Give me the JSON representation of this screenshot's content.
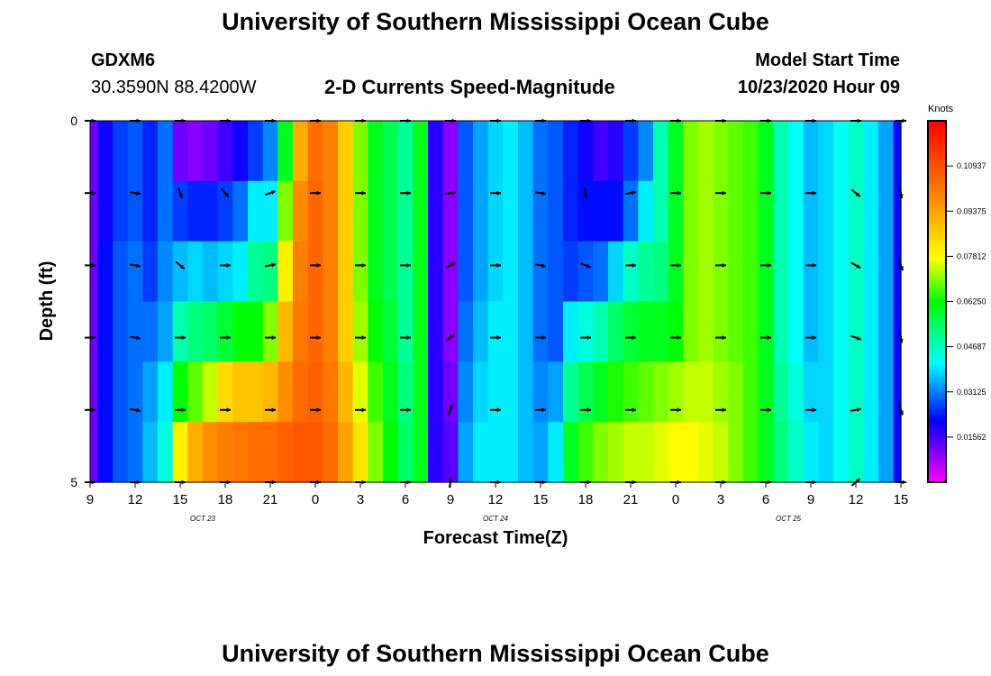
{
  "header": {
    "title": "University of Southern Mississippi Ocean Cube",
    "station_id": "GDXM6",
    "coordinates": "30.3590N 88.4200W",
    "plot_title": "2-D Currents Speed-Magnitude",
    "model_label": "Model Start Time",
    "model_time": "10/23/2020 Hour 09"
  },
  "footer": {
    "title": "University of Southern Mississippi Ocean Cube"
  },
  "colors": {
    "vector": "#000000",
    "scale": [
      "#ff00ff",
      "#0000ff",
      "#00ffff",
      "#00ff00",
      "#ffff00",
      "#ff8000",
      "#ff0000"
    ]
  },
  "chart_data": {
    "type": "heatmap",
    "title": "2-D Currents Speed-Magnitude",
    "xlabel": "Forecast Time(Z)",
    "ylabel": "Depth (ft)",
    "x_hours_from_start": [
      0,
      54
    ],
    "ylim": [
      0,
      5
    ],
    "y_ticks": [
      "0",
      "5"
    ],
    "x_ticks": [
      {
        "h": 0,
        "label": "9"
      },
      {
        "h": 3,
        "label": "12"
      },
      {
        "h": 6,
        "label": "15"
      },
      {
        "h": 9,
        "label": "18"
      },
      {
        "h": 12,
        "label": "21"
      },
      {
        "h": 15,
        "label": "0"
      },
      {
        "h": 18,
        "label": "3"
      },
      {
        "h": 21,
        "label": "6"
      },
      {
        "h": 24,
        "label": "9"
      },
      {
        "h": 27,
        "label": "12"
      },
      {
        "h": 30,
        "label": "15"
      },
      {
        "h": 33,
        "label": "18"
      },
      {
        "h": 36,
        "label": "21"
      },
      {
        "h": 39,
        "label": "0"
      },
      {
        "h": 42,
        "label": "3"
      },
      {
        "h": 45,
        "label": "6"
      },
      {
        "h": 48,
        "label": "9"
      },
      {
        "h": 51,
        "label": "12"
      },
      {
        "h": 54,
        "label": "15"
      }
    ],
    "date_labels": [
      {
        "h": 7.5,
        "label": "OCT 23"
      },
      {
        "h": 27,
        "label": "OCT 24"
      },
      {
        "h": 46.5,
        "label": "OCT 25"
      }
    ],
    "colorbar": {
      "unit": "Knots",
      "range": [
        0,
        0.125
      ],
      "tick_labels": [
        "0.10937",
        "0.09375",
        "0.07812",
        "0.06250",
        "0.04687",
        "0.03125",
        "0.01562"
      ],
      "tick_values": [
        0.10937,
        0.09375,
        0.07812,
        0.0625,
        0.04687,
        0.03125,
        0.01562
      ]
    },
    "depth_levels": [
      0,
      1,
      2,
      3,
      4,
      5
    ],
    "speed_profile_hours": [
      0,
      1,
      2,
      3,
      4,
      5,
      6,
      7,
      8,
      9,
      10,
      11,
      12,
      13,
      14,
      15,
      16,
      17,
      18,
      19,
      20,
      21,
      22,
      23,
      24,
      25,
      26,
      27,
      28,
      29,
      30,
      31,
      32,
      33,
      34,
      35,
      36,
      37,
      38,
      39,
      40,
      41,
      42,
      43,
      44,
      45,
      46,
      47,
      48,
      49,
      50,
      51,
      52,
      53,
      54
    ],
    "speed_knots_by_depth": [
      [
        0.012,
        0.02,
        0.026,
        0.028,
        0.024,
        0.03,
        0.012,
        0.01,
        0.012,
        0.016,
        0.02,
        0.026,
        0.032,
        0.06,
        0.092,
        0.104,
        0.1,
        0.086,
        0.07,
        0.06,
        0.056,
        0.05,
        0.06,
        0.018,
        0.01,
        0.028,
        0.034,
        0.038,
        0.04,
        0.036,
        0.03,
        0.028,
        0.024,
        0.02,
        0.016,
        0.018,
        0.026,
        0.032,
        0.048,
        0.06,
        0.07,
        0.072,
        0.07,
        0.068,
        0.066,
        0.06,
        0.048,
        0.042,
        0.036,
        0.038,
        0.042,
        0.046,
        0.04,
        0.034,
        0.022
      ],
      [
        0.012,
        0.02,
        0.026,
        0.028,
        0.024,
        0.03,
        0.026,
        0.024,
        0.024,
        0.026,
        0.03,
        0.04,
        0.04,
        0.07,
        0.098,
        0.105,
        0.1,
        0.086,
        0.07,
        0.06,
        0.056,
        0.05,
        0.06,
        0.018,
        0.01,
        0.028,
        0.034,
        0.038,
        0.04,
        0.036,
        0.03,
        0.028,
        0.024,
        0.022,
        0.022,
        0.022,
        0.03,
        0.04,
        0.048,
        0.06,
        0.07,
        0.072,
        0.07,
        0.068,
        0.066,
        0.06,
        0.048,
        0.042,
        0.036,
        0.038,
        0.042,
        0.046,
        0.04,
        0.034,
        0.022
      ],
      [
        0.012,
        0.022,
        0.028,
        0.03,
        0.026,
        0.032,
        0.036,
        0.038,
        0.036,
        0.038,
        0.04,
        0.05,
        0.052,
        0.08,
        0.1,
        0.105,
        0.1,
        0.086,
        0.07,
        0.06,
        0.056,
        0.05,
        0.06,
        0.018,
        0.01,
        0.028,
        0.034,
        0.038,
        0.04,
        0.036,
        0.03,
        0.028,
        0.026,
        0.028,
        0.03,
        0.038,
        0.046,
        0.05,
        0.052,
        0.06,
        0.07,
        0.072,
        0.07,
        0.068,
        0.066,
        0.06,
        0.048,
        0.042,
        0.036,
        0.038,
        0.042,
        0.046,
        0.04,
        0.034,
        0.022
      ],
      [
        0.012,
        0.022,
        0.028,
        0.03,
        0.03,
        0.034,
        0.048,
        0.052,
        0.054,
        0.058,
        0.062,
        0.062,
        0.07,
        0.09,
        0.102,
        0.105,
        0.1,
        0.086,
        0.072,
        0.062,
        0.058,
        0.05,
        0.06,
        0.018,
        0.01,
        0.03,
        0.036,
        0.04,
        0.04,
        0.036,
        0.03,
        0.028,
        0.04,
        0.044,
        0.048,
        0.054,
        0.058,
        0.06,
        0.06,
        0.062,
        0.07,
        0.072,
        0.07,
        0.068,
        0.066,
        0.06,
        0.048,
        0.042,
        0.036,
        0.038,
        0.042,
        0.046,
        0.04,
        0.034,
        0.022
      ],
      [
        0.012,
        0.022,
        0.028,
        0.03,
        0.034,
        0.04,
        0.062,
        0.068,
        0.074,
        0.084,
        0.088,
        0.088,
        0.09,
        0.098,
        0.104,
        0.106,
        0.102,
        0.09,
        0.076,
        0.066,
        0.06,
        0.052,
        0.06,
        0.018,
        0.012,
        0.032,
        0.038,
        0.04,
        0.04,
        0.036,
        0.032,
        0.034,
        0.05,
        0.056,
        0.06,
        0.064,
        0.066,
        0.068,
        0.07,
        0.072,
        0.074,
        0.074,
        0.072,
        0.07,
        0.066,
        0.06,
        0.05,
        0.044,
        0.038,
        0.038,
        0.042,
        0.046,
        0.04,
        0.034,
        0.022
      ],
      [
        0.012,
        0.022,
        0.028,
        0.03,
        0.036,
        0.044,
        0.08,
        0.092,
        0.098,
        0.1,
        0.102,
        0.104,
        0.104,
        0.106,
        0.108,
        0.108,
        0.104,
        0.094,
        0.082,
        0.07,
        0.062,
        0.054,
        0.06,
        0.018,
        0.014,
        0.034,
        0.04,
        0.04,
        0.04,
        0.036,
        0.034,
        0.04,
        0.06,
        0.066,
        0.07,
        0.072,
        0.074,
        0.074,
        0.076,
        0.078,
        0.078,
        0.076,
        0.074,
        0.07,
        0.066,
        0.06,
        0.052,
        0.046,
        0.04,
        0.038,
        0.042,
        0.046,
        0.04,
        0.034,
        0.022
      ]
    ],
    "vector_hours": [
      0,
      3,
      6,
      9,
      12,
      15,
      18,
      21,
      24,
      27,
      30,
      33,
      36,
      39,
      42,
      45,
      48,
      51,
      54
    ],
    "vector_directions_deg": [
      [
        90,
        90,
        90,
        90,
        90,
        90,
        90,
        90,
        90,
        90,
        90,
        90,
        90,
        90,
        90,
        90,
        90,
        90,
        90
      ],
      [
        90,
        100,
        160,
        140,
        70,
        90,
        90,
        90,
        80,
        90,
        100,
        170,
        80,
        90,
        90,
        90,
        90,
        130,
        170
      ],
      [
        90,
        100,
        130,
        90,
        80,
        90,
        90,
        90,
        60,
        90,
        100,
        110,
        90,
        90,
        90,
        90,
        90,
        120,
        160
      ],
      [
        90,
        100,
        90,
        90,
        90,
        90,
        90,
        90,
        50,
        90,
        90,
        90,
        90,
        90,
        90,
        90,
        90,
        110,
        170
      ],
      [
        90,
        100,
        90,
        90,
        90,
        90,
        90,
        90,
        20,
        90,
        90,
        90,
        90,
        90,
        90,
        90,
        90,
        80,
        160
      ],
      [
        90,
        90,
        90,
        90,
        90,
        90,
        90,
        90,
        10,
        90,
        90,
        90,
        90,
        90,
        90,
        90,
        90,
        50,
        90
      ]
    ]
  }
}
